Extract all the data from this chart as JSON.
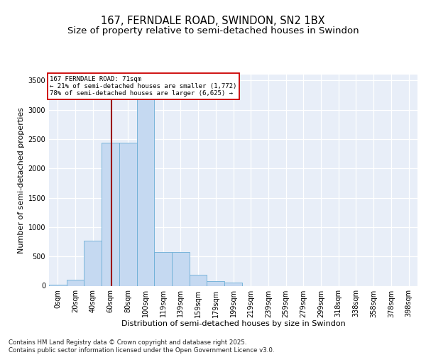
{
  "title1": "167, FERNDALE ROAD, SWINDON, SN2 1BX",
  "title2": "Size of property relative to semi-detached houses in Swindon",
  "xlabel": "Distribution of semi-detached houses by size in Swindon",
  "ylabel": "Number of semi-detached properties",
  "categories": [
    "0sqm",
    "20sqm",
    "40sqm",
    "60sqm",
    "80sqm",
    "100sqm",
    "119sqm",
    "139sqm",
    "159sqm",
    "179sqm",
    "199sqm",
    "219sqm",
    "239sqm",
    "259sqm",
    "279sqm",
    "299sqm",
    "318sqm",
    "338sqm",
    "358sqm",
    "378sqm",
    "398sqm"
  ],
  "bar_values": [
    20,
    100,
    770,
    2440,
    2440,
    3320,
    580,
    580,
    190,
    80,
    50,
    0,
    0,
    0,
    0,
    0,
    0,
    0,
    0,
    0,
    0
  ],
  "bar_color": "#c5d9f1",
  "bar_edge_color": "#6baed6",
  "property_label": "167 FERNDALE ROAD: 71sqm",
  "smaller_pct": "21%",
  "smaller_count": "1,772",
  "larger_pct": "78%",
  "larger_count": "6,625",
  "vline_color": "#9b0000",
  "annotation_box_color": "#cc0000",
  "ylim": [
    0,
    3600
  ],
  "yticks": [
    0,
    500,
    1000,
    1500,
    2000,
    2500,
    3000,
    3500
  ],
  "bg_color": "#e8eef8",
  "footer": "Contains HM Land Registry data © Crown copyright and database right 2025.\nContains public sector information licensed under the Open Government Licence v3.0.",
  "title_fontsize": 10.5,
  "subtitle_fontsize": 9.5,
  "axis_fontsize": 8,
  "tick_fontsize": 7
}
